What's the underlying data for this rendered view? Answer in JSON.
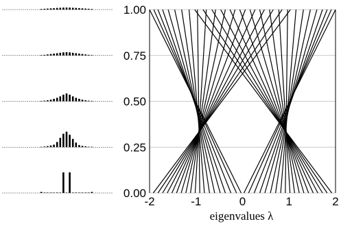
{
  "chart_data": {
    "type": "line",
    "title": "",
    "xlabel": "eigenvalues λ",
    "ylabel": "",
    "xlim": [
      -2,
      2
    ],
    "ylim": [
      0,
      1
    ],
    "x_ticks": [
      "-2",
      "-1",
      "0",
      "1",
      "2"
    ],
    "y_ticks": [
      "0.00",
      "0.25",
      "0.50",
      "0.75",
      "1.00"
    ],
    "grid": "horizontal",
    "y_tick_values": [
      0,
      0.25,
      0.5,
      0.75,
      1.0
    ],
    "x_tick_values": [
      -2,
      -1,
      0,
      1,
      2
    ],
    "eigenvalue_trajectories": [
      {
        "name": "",
        "x": [
          -0.03,
          -2.0
        ]
      },
      {
        "name": "",
        "x": [
          0.03,
          2.0
        ]
      },
      {
        "name": "",
        "x": [
          -0.13,
          -1.91
        ]
      },
      {
        "name": "",
        "x": [
          0.13,
          1.91
        ]
      },
      {
        "name": "",
        "x": [
          -0.25,
          -1.82
        ]
      },
      {
        "name": "",
        "x": [
          0.25,
          1.82
        ]
      },
      {
        "name": "",
        "x": [
          -0.37,
          -1.72
        ]
      },
      {
        "name": "",
        "x": [
          0.37,
          1.72
        ]
      },
      {
        "name": "",
        "x": [
          -0.48,
          -1.6
        ]
      },
      {
        "name": "",
        "x": [
          0.48,
          1.6
        ]
      },
      {
        "name": "",
        "x": [
          -0.6,
          -1.46
        ]
      },
      {
        "name": "",
        "x": [
          0.6,
          1.46
        ]
      },
      {
        "name": "",
        "x": [
          -0.71,
          -1.31
        ]
      },
      {
        "name": "",
        "x": [
          0.71,
          1.31
        ]
      },
      {
        "name": "",
        "x": [
          -0.82,
          -1.15
        ]
      },
      {
        "name": "",
        "x": [
          0.82,
          1.15
        ]
      },
      {
        "name": "",
        "x": [
          -0.92,
          -0.97
        ]
      },
      {
        "name": "",
        "x": [
          0.92,
          0.97
        ]
      },
      {
        "name": "",
        "x": [
          -1.02,
          -0.78
        ]
      },
      {
        "name": "",
        "x": [
          1.02,
          0.78
        ]
      },
      {
        "name": "",
        "x": [
          -1.12,
          -0.58
        ]
      },
      {
        "name": "",
        "x": [
          1.12,
          0.58
        ]
      },
      {
        "name": "",
        "x": [
          -1.22,
          -0.37
        ]
      },
      {
        "name": "",
        "x": [
          1.22,
          0.37
        ]
      },
      {
        "name": "",
        "x": [
          -1.32,
          -0.16
        ]
      },
      {
        "name": "",
        "x": [
          1.32,
          0.16
        ]
      },
      {
        "name": "",
        "x": [
          -1.42,
          0.06
        ]
      },
      {
        "name": "",
        "x": [
          1.42,
          -0.06
        ]
      },
      {
        "name": "",
        "x": [
          -1.52,
          0.27
        ]
      },
      {
        "name": "",
        "x": [
          1.52,
          -0.27
        ]
      },
      {
        "name": "",
        "x": [
          -1.62,
          0.47
        ]
      },
      {
        "name": "",
        "x": [
          1.62,
          -0.47
        ]
      },
      {
        "name": "",
        "x": [
          -1.72,
          0.66
        ]
      },
      {
        "name": "",
        "x": [
          1.72,
          -0.66
        ]
      },
      {
        "name": "",
        "x": [
          -1.82,
          0.85
        ]
      },
      {
        "name": "",
        "x": [
          1.82,
          -0.85
        ]
      },
      {
        "name": "",
        "x": [
          -1.92,
          1.03
        ]
      },
      {
        "name": "",
        "x": [
          1.92,
          -1.03
        ]
      }
    ],
    "trajectory_y": [
      0,
      1
    ],
    "distribution_insets": [
      {
        "y": 0.0,
        "bars": [
          0.05,
          0.0,
          0.0,
          0.0,
          0.0,
          0.0,
          0.0,
          1.0,
          0.0,
          1.0,
          0.0,
          0.0,
          0.0,
          0.0,
          0.0,
          0.0,
          0.05
        ]
      },
      {
        "y": 0.25,
        "bars": [
          0.02,
          0.03,
          0.05,
          0.08,
          0.12,
          0.25,
          0.45,
          0.65,
          0.75,
          0.6,
          0.4,
          0.22,
          0.1,
          0.06,
          0.04,
          0.02,
          0.01
        ]
      },
      {
        "y": 0.5,
        "bars": [
          0.02,
          0.03,
          0.05,
          0.08,
          0.12,
          0.17,
          0.24,
          0.32,
          0.38,
          0.32,
          0.24,
          0.17,
          0.12,
          0.08,
          0.05,
          0.03,
          0.02
        ]
      },
      {
        "y": 0.75,
        "bars": [
          0.02,
          0.03,
          0.05,
          0.07,
          0.09,
          0.11,
          0.13,
          0.15,
          0.16,
          0.15,
          0.13,
          0.11,
          0.09,
          0.07,
          0.05,
          0.03,
          0.02
        ]
      },
      {
        "y": 1.0,
        "bars": [
          0.03,
          0.04,
          0.05,
          0.06,
          0.07,
          0.08,
          0.09,
          0.1,
          0.1,
          0.1,
          0.09,
          0.08,
          0.07,
          0.06,
          0.05,
          0.04,
          0.03
        ]
      }
    ]
  }
}
